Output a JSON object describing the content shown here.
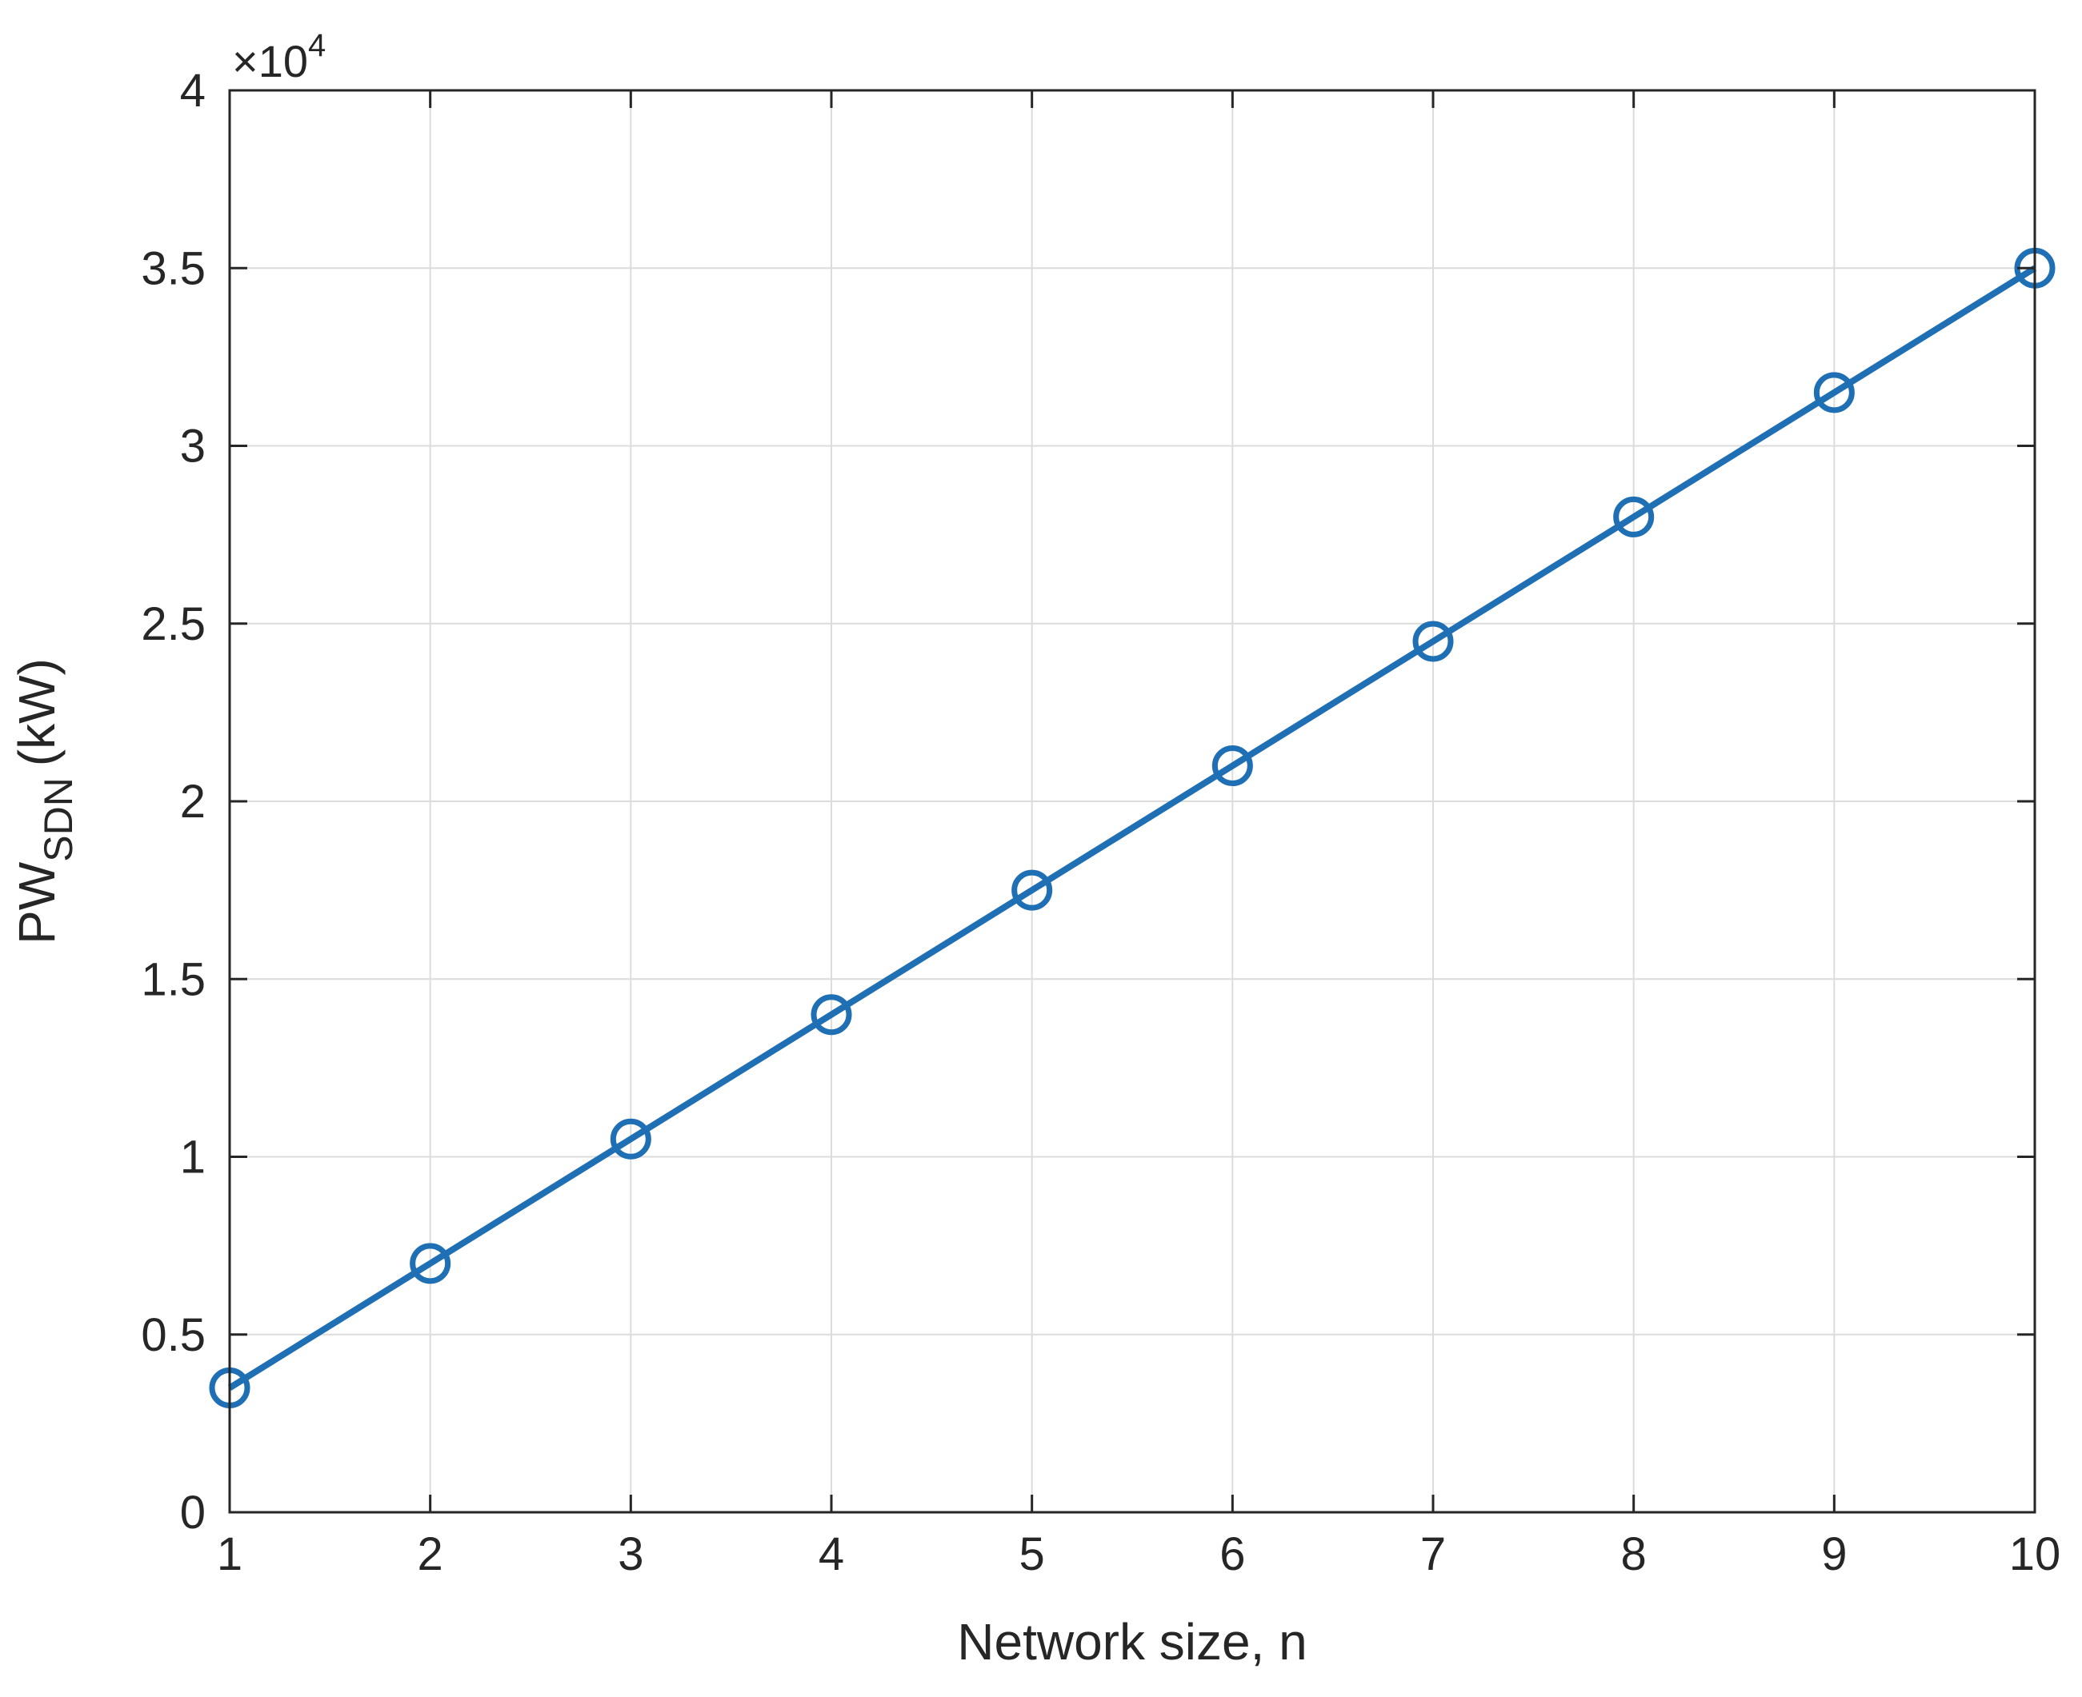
{
  "chart_data": {
    "type": "line",
    "title": "",
    "xlabel": "Network size, n",
    "ylabel": {
      "main": "PW",
      "subscript": "SDN",
      "unit": "(kW)"
    },
    "y_exponent": {
      "prefix": "×10",
      "power": "4"
    },
    "xlim": [
      1,
      10
    ],
    "ylim": [
      0,
      4
    ],
    "xticks": [
      1,
      2,
      3,
      4,
      5,
      6,
      7,
      8,
      9,
      10
    ],
    "xtick_labels": [
      "1",
      "2",
      "3",
      "4",
      "5",
      "6",
      "7",
      "8",
      "9",
      "10"
    ],
    "yticks": [
      0,
      0.5,
      1,
      1.5,
      2,
      2.5,
      3,
      3.5,
      4
    ],
    "ytick_labels": [
      "0",
      "0.5",
      "1",
      "1.5",
      "2",
      "2.5",
      "3",
      "3.5",
      "4"
    ],
    "grid": true,
    "legend": "none",
    "series": [
      {
        "color": "#1f6fb4",
        "marker": "circle",
        "x": [
          1,
          2,
          3,
          4,
          5,
          6,
          7,
          8,
          9,
          10
        ],
        "y": [
          0.35,
          0.7,
          1.05,
          1.4,
          1.75,
          2.1,
          2.45,
          2.8,
          3.15,
          3.5
        ]
      }
    ]
  }
}
